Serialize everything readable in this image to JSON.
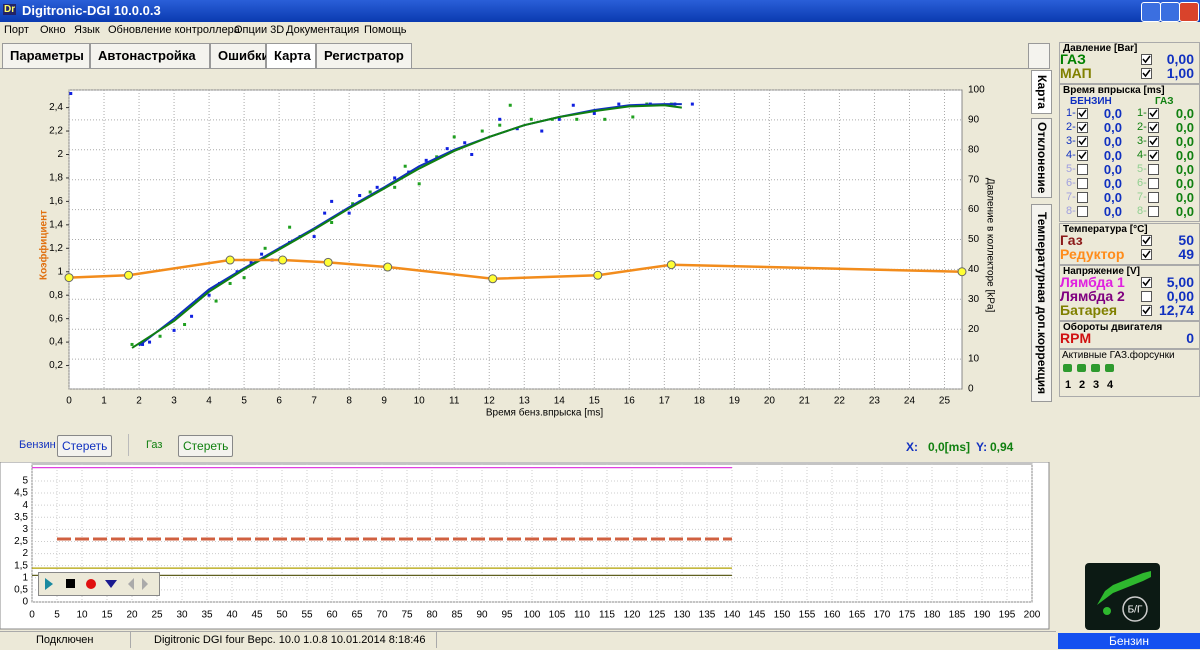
{
  "window": {
    "icon": "Dr",
    "title": "Digitronic-DGI  10.0.0.3"
  },
  "menu": [
    "Порт",
    "Окно",
    "Язык",
    "Обновление контроллера",
    "Опции 3D",
    "Документация",
    "Помощь"
  ],
  "tabs": [
    "Параметры",
    "Автонастройка",
    "Ошибки",
    "Карта",
    "Регистратор"
  ],
  "side_tabs": [
    "Карта",
    "Отклонение",
    "Температурная доп.коррекция"
  ],
  "map_chart": {
    "type": "line",
    "x_label": "Время бенз.впрыска [ms]",
    "y_label": "Коэффициент",
    "y2_label": "Давление в коллекторе [kPa]",
    "xlim": [
      0,
      25.5
    ],
    "xticks": [
      0,
      1,
      2,
      3,
      4,
      5,
      6,
      7,
      8,
      9,
      10,
      11,
      12,
      13,
      14,
      15,
      16,
      17,
      18,
      19,
      20,
      21,
      22,
      23,
      24,
      25
    ],
    "ylim": [
      0,
      2.55
    ],
    "yticks": [
      {
        "value": 0.2,
        "label": "0,2"
      },
      {
        "value": 0.4,
        "label": "0,4"
      },
      {
        "value": 0.6,
        "label": "0,6"
      },
      {
        "value": 0.8,
        "label": "0,8"
      },
      {
        "value": 1,
        "label": "1"
      },
      {
        "value": 1.2,
        "label": "1,2"
      },
      {
        "value": 1.4,
        "label": "1,4"
      },
      {
        "value": 1.6,
        "label": "1,6"
      },
      {
        "value": 1.8,
        "label": "1,8"
      },
      {
        "value": 2,
        "label": "2"
      },
      {
        "value": 2.2,
        "label": "2,2"
      },
      {
        "value": 2.4,
        "label": "2,4"
      }
    ],
    "y2lim": [
      0,
      100
    ],
    "y2ticks": [
      0,
      10,
      20,
      30,
      40,
      50,
      60,
      70,
      80,
      90,
      100
    ],
    "grid": true,
    "correction": {
      "color": "#f28c1c",
      "marker_color": "#ffff33",
      "x": [
        0,
        1.7,
        4.6,
        6.1,
        7.4,
        9.1,
        12.1,
        15.1,
        17.2,
        25.5
      ],
      "values": [
        0.95,
        0.97,
        1.1,
        1.1,
        1.08,
        1.04,
        0.94,
        0.97,
        1.06,
        1.0
      ]
    },
    "lines": [
      {
        "color": "#1030c0",
        "x": [
          2,
          3,
          4,
          5,
          6,
          7,
          8,
          9,
          10,
          11,
          12,
          13,
          14,
          15,
          16,
          17,
          17.5
        ],
        "values": [
          0.37,
          0.6,
          0.85,
          1.03,
          1.2,
          1.37,
          1.55,
          1.72,
          1.9,
          2.04,
          2.15,
          2.25,
          2.32,
          2.38,
          2.42,
          2.43,
          2.43
        ]
      },
      {
        "color": "#108010",
        "x": [
          1.8,
          3,
          4,
          5,
          6,
          7,
          8,
          9,
          10,
          11,
          12,
          13,
          14,
          15,
          16,
          17,
          17.5
        ],
        "values": [
          0.35,
          0.58,
          0.83,
          1.02,
          1.19,
          1.36,
          1.54,
          1.71,
          1.88,
          2.03,
          2.15,
          2.25,
          2.32,
          2.37,
          2.41,
          2.42,
          2.4
        ]
      }
    ],
    "scatter": [
      {
        "color": "#1020e0",
        "x": [
          0.05,
          2.1,
          2.3,
          3,
          3.5,
          4,
          4.3,
          4.8,
          5.2,
          5.5,
          5.8,
          6.3,
          7,
          7.3,
          7.5,
          8,
          8.3,
          8.8,
          9.3,
          9.7,
          10.2,
          10.8,
          11.3,
          11.5,
          12.3,
          12.8,
          13.5,
          14,
          14.4,
          15,
          15.7,
          16.6,
          17.3,
          17.8
        ],
        "values": [
          2.52,
          0.38,
          0.4,
          0.5,
          0.62,
          0.8,
          0.9,
          1.0,
          1.08,
          1.15,
          1.1,
          1.25,
          1.3,
          1.5,
          1.6,
          1.5,
          1.65,
          1.72,
          1.8,
          1.85,
          1.95,
          2.05,
          2.1,
          2.0,
          2.3,
          2.22,
          2.2,
          2.3,
          2.42,
          2.35,
          2.43,
          2.43,
          2.43,
          2.43
        ]
      },
      {
        "color": "#20a020",
        "x": [
          1.8,
          2.6,
          3.3,
          4.2,
          4.6,
          5,
          5.6,
          6.3,
          6.6,
          7.5,
          8.1,
          8.6,
          9.3,
          9.6,
          10,
          10.5,
          11,
          11.8,
          12.3,
          12.6,
          13.2,
          13.8,
          14.5,
          15.3,
          16.1,
          16.5,
          17.2
        ],
        "values": [
          0.38,
          0.45,
          0.55,
          0.75,
          0.9,
          0.95,
          1.2,
          1.38,
          1.3,
          1.42,
          1.58,
          1.68,
          1.72,
          1.9,
          1.75,
          1.98,
          2.15,
          2.2,
          2.25,
          2.42,
          2.3,
          2.3,
          2.3,
          2.3,
          2.32,
          2.43,
          2.43
        ]
      }
    ]
  },
  "controls": {
    "petrol": "Бензин",
    "clear_petrol": "Стереть",
    "gas": "Газ",
    "clear_gas": "Стереть",
    "x_label": "X:",
    "x_value": "0,0[ms]",
    "y_label": "Y:",
    "y_value": "0,94"
  },
  "recorder_chart": {
    "type": "line",
    "xlim": [
      0,
      200
    ],
    "xticks": [
      0,
      5,
      10,
      15,
      20,
      25,
      30,
      35,
      40,
      45,
      50,
      55,
      60,
      65,
      70,
      75,
      80,
      85,
      90,
      95,
      100,
      105,
      110,
      115,
      120,
      125,
      130,
      135,
      140,
      145,
      150,
      155,
      160,
      165,
      170,
      175,
      180,
      185,
      190,
      195,
      200
    ],
    "ylim": [
      0,
      5.7
    ],
    "yticks": [
      0,
      {
        "value": 0.5,
        "label": "0,5"
      },
      1,
      {
        "value": 1.5,
        "label": "1,5"
      },
      2,
      {
        "value": 2.5,
        "label": "2,5"
      },
      3,
      {
        "value": 3.5,
        "label": "3,5"
      },
      4,
      {
        "value": 4.5,
        "label": "4,5"
      },
      5
    ],
    "grid": true,
    "series": [
      {
        "color": "#e040e0",
        "x": [
          0,
          140
        ],
        "values": [
          5.55,
          5.55
        ]
      },
      {
        "color": "#d06040",
        "dashed": true,
        "x": [
          5,
          140
        ],
        "values": [
          2.6,
          2.6
        ]
      },
      {
        "color": "#b0a000",
        "x": [
          0,
          140
        ],
        "values": [
          1.4,
          1.4
        ]
      },
      {
        "color": "#606020",
        "x": [
          0,
          140
        ],
        "values": [
          1.1,
          1.1
        ]
      }
    ]
  },
  "status": [
    "Подключен",
    "Digitronic DGI four   Верс. 10.0  1.0.8    10.01.2014 8:18:46"
  ],
  "panel": {
    "sections": [
      {
        "title": "Давление [Bar]",
        "rows": [
          {
            "label": "ГАЗ",
            "color": "#008000",
            "checked": true,
            "value": "0,00"
          },
          {
            "label": "МАП",
            "color": "#808000",
            "checked": true,
            "value": "1,00"
          }
        ]
      },
      {
        "title": "Время впрыска [ms]",
        "petrol": "БЕНЗИН",
        "gas": "ГАЗ",
        "injectors": [
          {
            "petrol_label": "1-",
            "petrol_checked": true,
            "petrol_value": "0,0",
            "gas_label": "1-",
            "gas_checked": true,
            "gas_value": "0,0"
          },
          {
            "petrol_label": "2-",
            "petrol_checked": true,
            "petrol_value": "0,0",
            "gas_label": "2-",
            "gas_checked": true,
            "gas_value": "0,0"
          },
          {
            "petrol_label": "3-",
            "petrol_checked": true,
            "petrol_value": "0,0",
            "gas_label": "3-",
            "gas_checked": true,
            "gas_value": "0,0"
          },
          {
            "petrol_label": "4-",
            "petrol_checked": true,
            "petrol_value": "0,0",
            "gas_label": "4-",
            "gas_checked": true,
            "gas_value": "0,0"
          },
          {
            "petrol_label": "5-",
            "petrol_checked": false,
            "petrol_value": "0,0",
            "gas_label": "5-",
            "gas_checked": false,
            "gas_value": "0,0"
          },
          {
            "petrol_label": "6-",
            "petrol_checked": false,
            "petrol_value": "0,0",
            "gas_label": "6-",
            "gas_checked": false,
            "gas_value": "0,0"
          },
          {
            "petrol_label": "7-",
            "petrol_checked": false,
            "petrol_value": "0,0",
            "gas_label": "7-",
            "gas_checked": false,
            "gas_value": "0,0"
          },
          {
            "petrol_label": "8-",
            "petrol_checked": false,
            "petrol_value": "0,0",
            "gas_label": "8-",
            "gas_checked": false,
            "gas_value": "0,0"
          }
        ]
      },
      {
        "title": "Температура [°C]",
        "rows": [
          {
            "label": "Газ",
            "color": "#8b1a1a",
            "checked": true,
            "value": "50"
          },
          {
            "label": "Редуктор",
            "color": "#ff8c1a",
            "checked": true,
            "value": "49"
          }
        ]
      },
      {
        "title": "Напряжение [V]",
        "rows": [
          {
            "label": "Лямбда 1",
            "color": "#e020e0",
            "checked": true,
            "value": "5,00"
          },
          {
            "label": "Лямбда 2",
            "color": "#800080",
            "checked": false,
            "value": "0,00"
          },
          {
            "label": "Батарея",
            "color": "#808000",
            "checked": true,
            "value": "12,74"
          }
        ]
      },
      {
        "title": "Обороты двигателя",
        "rows": [
          {
            "label": "RPM",
            "color": "#d01010",
            "value": "0"
          }
        ]
      }
    ],
    "active_injectors": {
      "title": "Активные ГАЗ.форсунки",
      "labels": [
        "1",
        "2",
        "3",
        "4"
      ]
    },
    "gauge_label": "Б/Г",
    "mode": "Бензин"
  }
}
